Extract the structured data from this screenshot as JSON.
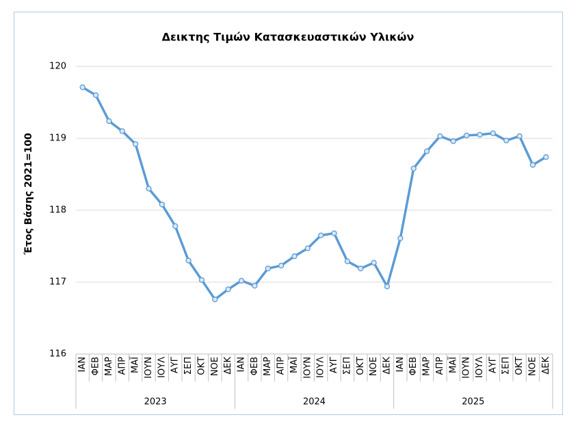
{
  "chart_data": {
    "type": "line",
    "title": "Δεικτης Τιμών Κατασκευαστικών Υλικών",
    "y_label": "Έτος Βάσης 2021=100",
    "categories": [
      "ΙΑΝ",
      "ΦΕΒ",
      "ΜΑΡ",
      "ΑΠΡ",
      "ΜΑΪ",
      "ΙΟΥΝ",
      "ΙΟΥΛ",
      "ΑΥΓ",
      "ΣΕΠ",
      "ΟΚΤ",
      "ΝΟΕ",
      "ΔΕΚ",
      "ΙΑΝ",
      "ΦΕΒ",
      "ΜΑΡ",
      "ΑΠΡ",
      "ΜΑΪ",
      "ΙΟΥΝ",
      "ΙΟΥΛ",
      "ΑΥΓ",
      "ΣΕΠ",
      "ΟΚΤ",
      "ΝΟΕ",
      "ΔΕΚ",
      "ΙΑΝ",
      "ΦΕΒ",
      "ΜΑΡ",
      "ΑΠΡ",
      "ΜΑΪ",
      "ΙΟΥΝ",
      "ΙΟΥΛ",
      "ΑΥΓ",
      "ΣΕΠ",
      "ΟΚΤ",
      "ΝΟΕ",
      "ΔΕΚ"
    ],
    "category_groups": [
      "2023",
      "2024",
      "2025"
    ],
    "values": [
      119.71,
      119.6,
      119.24,
      119.1,
      118.92,
      118.3,
      118.08,
      117.78,
      117.3,
      117.03,
      116.76,
      116.9,
      117.02,
      116.95,
      117.19,
      117.23,
      117.36,
      117.47,
      117.65,
      117.68,
      117.29,
      117.19,
      117.27,
      116.94,
      117.61,
      118.58,
      118.82,
      119.03,
      118.96,
      119.04,
      119.05,
      119.07,
      118.97,
      119.03,
      118.63,
      118.74
    ],
    "color": "#5b9bd5",
    "ylim": [
      116,
      120
    ],
    "yticks": [
      116,
      117,
      118,
      119,
      120
    ],
    "grid": true
  }
}
